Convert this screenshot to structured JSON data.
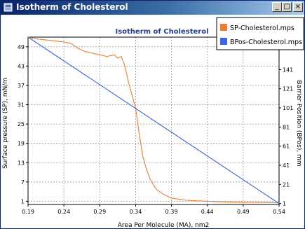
{
  "window": {
    "title": "Isotherm of Cholesterol",
    "buttons": {
      "minimize": "_",
      "maximize": "□",
      "close": "×"
    }
  },
  "icons": {
    "app": "window-icon",
    "minimize": "minimize-icon",
    "maximize": "maximize-icon",
    "close": "close-icon"
  },
  "chart_data": {
    "type": "line",
    "title": "Isotherm of Cholesterol",
    "xlabel": "Area Per Molecule (MA), nm2",
    "ylabel": "Surface pressure (SP), mN/m",
    "y2label": "Barrier Position (BPos), mm",
    "xlim": [
      0.19,
      0.54
    ],
    "ylim": [
      0,
      52
    ],
    "y2lim": [
      0,
      175
    ],
    "grid": true,
    "legend_position": "top-right",
    "x_ticks": [
      "0.19",
      "0.24",
      "0.29",
      "0.34",
      "0.39",
      "0.44",
      "0.49",
      "0.54"
    ],
    "y_ticks": [
      "1",
      "7",
      "13",
      "19",
      "25",
      "31",
      "37",
      "43",
      "49"
    ],
    "y2_ticks": [
      "1",
      "21",
      "41",
      "61",
      "81",
      "101",
      "121",
      "141"
    ],
    "series": [
      {
        "name": "SP-Cholesterol.mps",
        "color": "#f07d2c",
        "axis": "left",
        "x": [
          0.19,
          0.2,
          0.22,
          0.24,
          0.25,
          0.26,
          0.27,
          0.28,
          0.29,
          0.3,
          0.31,
          0.315,
          0.32,
          0.325,
          0.33,
          0.335,
          0.34,
          0.345,
          0.35,
          0.355,
          0.36,
          0.365,
          0.37,
          0.38,
          0.39,
          0.41,
          0.44,
          0.47,
          0.5,
          0.52,
          0.54
        ],
        "y": [
          52,
          51.5,
          51,
          50.5,
          50,
          48.5,
          47.5,
          47,
          46.5,
          46,
          46.5,
          45.5,
          46,
          43,
          38,
          34,
          30,
          22,
          15,
          11,
          8,
          6,
          4.5,
          3,
          2,
          1.3,
          1,
          0.8,
          0.7,
          0.6,
          0.5
        ]
      },
      {
        "name": "BPos-Cholesterol.mps",
        "color": "#3c64ec",
        "axis": "right",
        "x": [
          0.19,
          0.54
        ],
        "y": [
          175,
          1
        ]
      }
    ]
  }
}
